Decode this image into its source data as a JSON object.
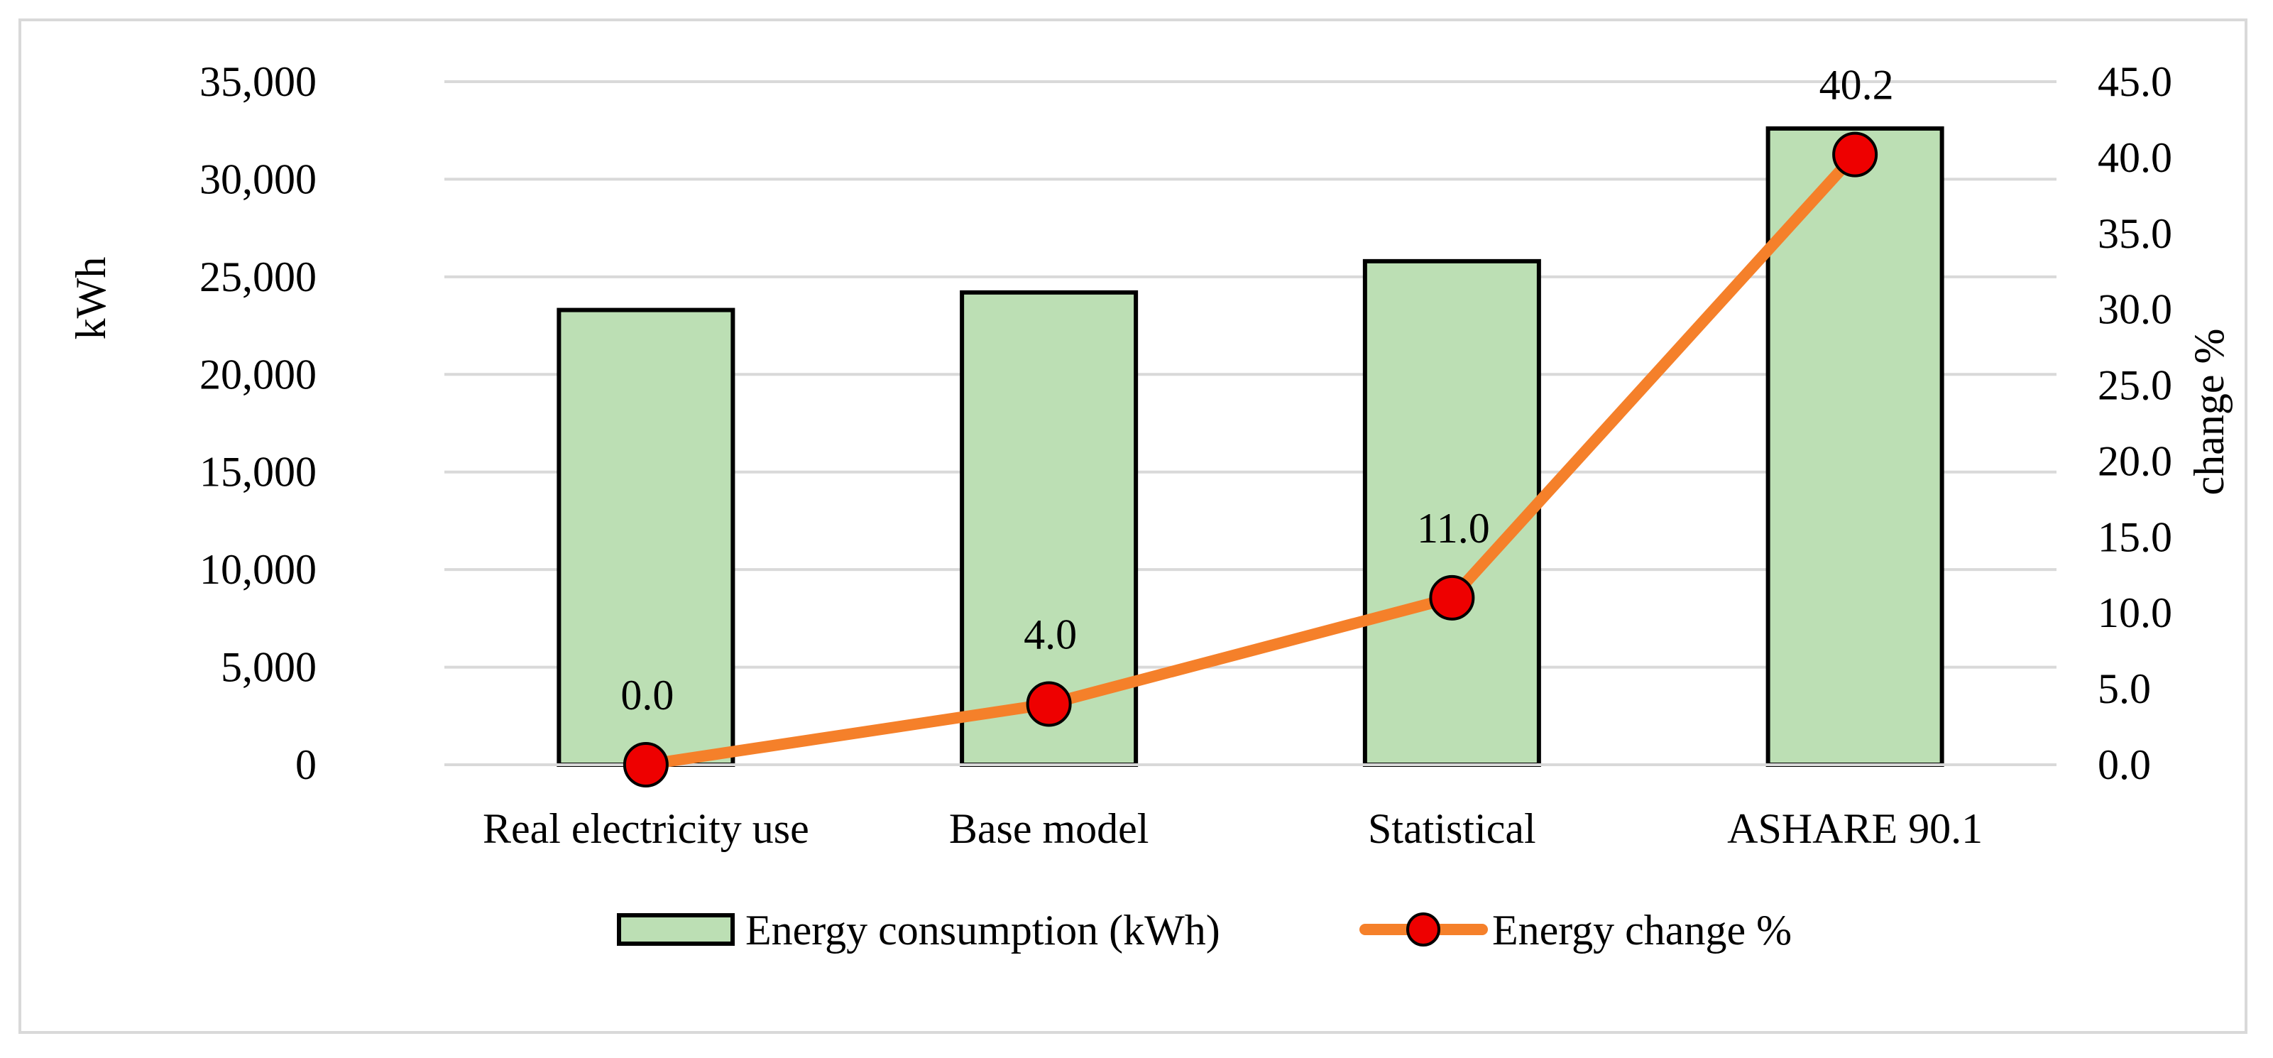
{
  "chart_data": {
    "type": "bar",
    "categories": [
      "Real electricity use",
      "Base model",
      "Statistical",
      "ASHARE 90.1"
    ],
    "series": [
      {
        "name": "Energy consumption (kWh)",
        "type": "bar",
        "axis": "left",
        "values": [
          23300,
          24200,
          25800,
          32600
        ],
        "color": "#bcdfb4"
      },
      {
        "name": "Energy change %",
        "type": "line",
        "axis": "right",
        "values": [
          0.0,
          4.0,
          11.0,
          40.2
        ],
        "data_labels": [
          "0.0",
          "4.0",
          "11.0",
          "40.2"
        ],
        "color": "#f5802a",
        "marker_color": "#ee0000"
      }
    ],
    "ylabel": "kWh",
    "ylabel_right": "change %",
    "ylim": [
      0,
      35000
    ],
    "ylim_right": [
      0,
      45
    ],
    "yticks": [
      "0",
      "5,000",
      "10,000",
      "15,000",
      "20,000",
      "25,000",
      "30,000",
      "35,000"
    ],
    "yticks_right": [
      "0.0",
      "5.0",
      "10.0",
      "15.0",
      "20.0",
      "25.0",
      "30.0",
      "35.0",
      "40.0",
      "45.0"
    ],
    "grid": true,
    "legend_position": "bottom"
  }
}
